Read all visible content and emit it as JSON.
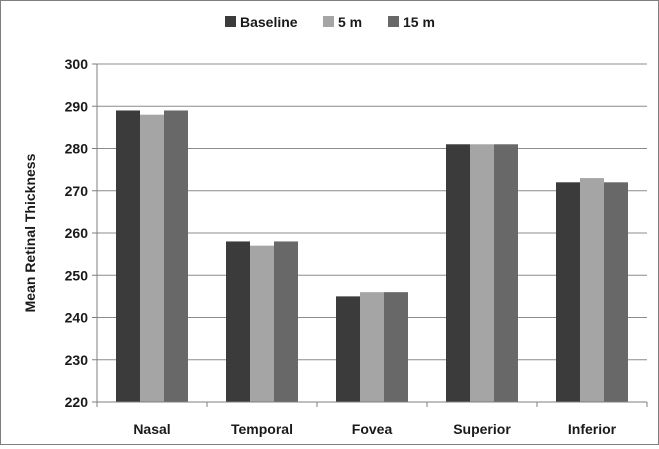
{
  "chart_data": {
    "type": "bar",
    "title": "",
    "xlabel": "",
    "ylabel": "Mean Retinal Thickness",
    "ylim": [
      220,
      300
    ],
    "yticks": [
      220,
      230,
      240,
      250,
      260,
      270,
      280,
      290,
      300
    ],
    "grid": true,
    "legend_position": "top",
    "categories": [
      "Nasal",
      "Temporal",
      "Fovea",
      "Superior",
      "Inferior"
    ],
    "series": [
      {
        "name": "Baseline",
        "color": "#3b3b3b",
        "values": [
          289,
          258,
          245,
          281,
          272
        ]
      },
      {
        "name": "5 m",
        "color": "#a5a5a5",
        "values": [
          288,
          257,
          246,
          281,
          273
        ]
      },
      {
        "name": "15 m",
        "color": "#686868",
        "values": [
          289,
          258,
          246,
          281,
          272
        ]
      }
    ]
  }
}
